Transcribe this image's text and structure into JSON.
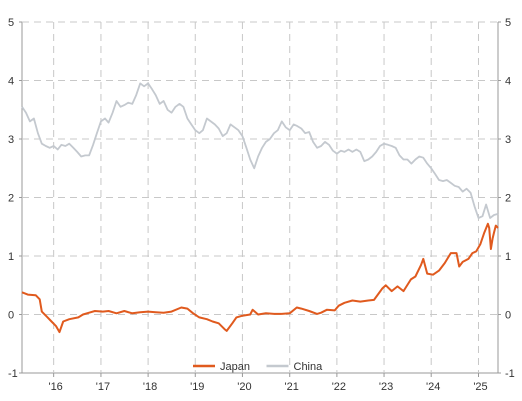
{
  "chart_data": {
    "type": "line",
    "x_axis": {
      "type": "date",
      "range": [
        "2015-05-01",
        "2025-06-01"
      ],
      "tick_dates": [
        "2016-01-01",
        "2017-01-01",
        "2018-01-01",
        "2019-01-01",
        "2020-01-01",
        "2021-01-01",
        "2022-01-01",
        "2023-01-01",
        "2024-01-01",
        "2025-01-01"
      ],
      "tick_labels": [
        "'16",
        "'17",
        "'18",
        "'19",
        "'20",
        "'21",
        "'22",
        "'23",
        "'24",
        "'25"
      ]
    },
    "y_axis": {
      "range": [
        -1,
        5
      ],
      "ticks": [
        -1,
        0,
        1,
        2,
        3,
        4,
        5
      ],
      "tick_labels": [
        "-1",
        "0",
        "1",
        "2",
        "3",
        "4",
        "5"
      ],
      "mirrored_right": true
    },
    "grid": true,
    "legend": {
      "position": "bottom-center"
    },
    "series": [
      {
        "name": "Japan",
        "color": "#e05a1e",
        "points": [
          [
            "2015-05-01",
            0.38
          ],
          [
            "2015-06-15",
            0.34
          ],
          [
            "2015-08-15",
            0.33
          ],
          [
            "2015-09-15",
            0.26
          ],
          [
            "2015-10-01",
            0.05
          ],
          [
            "2015-11-15",
            -0.05
          ],
          [
            "2015-12-15",
            -0.12
          ],
          [
            "2016-01-20",
            -0.2
          ],
          [
            "2016-02-15",
            -0.3
          ],
          [
            "2016-03-15",
            -0.12
          ],
          [
            "2016-05-01",
            -0.08
          ],
          [
            "2016-07-10",
            -0.05
          ],
          [
            "2016-08-15",
            0.0
          ],
          [
            "2016-10-01",
            0.03
          ],
          [
            "2016-11-15",
            0.06
          ],
          [
            "2017-01-15",
            0.05
          ],
          [
            "2017-03-01",
            0.06
          ],
          [
            "2017-05-01",
            0.02
          ],
          [
            "2017-07-01",
            0.06
          ],
          [
            "2017-09-01",
            0.02
          ],
          [
            "2017-11-01",
            0.04
          ],
          [
            "2018-01-01",
            0.05
          ],
          [
            "2018-03-01",
            0.04
          ],
          [
            "2018-05-01",
            0.03
          ],
          [
            "2018-07-01",
            0.05
          ],
          [
            "2018-09-15",
            0.12
          ],
          [
            "2018-11-01",
            0.1
          ],
          [
            "2018-12-15",
            0.02
          ],
          [
            "2019-02-01",
            -0.05
          ],
          [
            "2019-04-01",
            -0.08
          ],
          [
            "2019-05-15",
            -0.12
          ],
          [
            "2019-07-01",
            -0.15
          ],
          [
            "2019-08-15",
            -0.25
          ],
          [
            "2019-09-01",
            -0.28
          ],
          [
            "2019-10-15",
            -0.15
          ],
          [
            "2019-11-15",
            -0.05
          ],
          [
            "2020-01-01",
            -0.02
          ],
          [
            "2020-03-01",
            0.0
          ],
          [
            "2020-03-20",
            0.08
          ],
          [
            "2020-05-01",
            0.0
          ],
          [
            "2020-07-01",
            0.02
          ],
          [
            "2020-09-01",
            0.01
          ],
          [
            "2020-11-01",
            0.01
          ],
          [
            "2021-01-01",
            0.02
          ],
          [
            "2021-02-25",
            0.12
          ],
          [
            "2021-04-01",
            0.1
          ],
          [
            "2021-06-01",
            0.06
          ],
          [
            "2021-08-01",
            0.01
          ],
          [
            "2021-09-01",
            0.03
          ],
          [
            "2021-10-15",
            0.08
          ],
          [
            "2021-12-15",
            0.07
          ],
          [
            "2022-01-15",
            0.15
          ],
          [
            "2022-03-01",
            0.2
          ],
          [
            "2022-05-01",
            0.24
          ],
          [
            "2022-07-01",
            0.22
          ],
          [
            "2022-09-01",
            0.24
          ],
          [
            "2022-10-15",
            0.25
          ],
          [
            "2022-12-20",
            0.45
          ],
          [
            "2023-01-15",
            0.5
          ],
          [
            "2023-03-01",
            0.4
          ],
          [
            "2023-04-15",
            0.48
          ],
          [
            "2023-06-01",
            0.4
          ],
          [
            "2023-07-28",
            0.6
          ],
          [
            "2023-09-01",
            0.65
          ],
          [
            "2023-10-15",
            0.85
          ],
          [
            "2023-11-01",
            0.95
          ],
          [
            "2023-12-01",
            0.7
          ],
          [
            "2024-01-15",
            0.68
          ],
          [
            "2024-03-01",
            0.75
          ],
          [
            "2024-04-15",
            0.88
          ],
          [
            "2024-06-01",
            1.05
          ],
          [
            "2024-07-15",
            1.05
          ],
          [
            "2024-08-05",
            0.82
          ],
          [
            "2024-09-01",
            0.9
          ],
          [
            "2024-10-15",
            0.95
          ],
          [
            "2024-11-15",
            1.05
          ],
          [
            "2024-12-15",
            1.08
          ],
          [
            "2025-01-15",
            1.2
          ],
          [
            "2025-02-15",
            1.4
          ],
          [
            "2025-03-15",
            1.55
          ],
          [
            "2025-03-25",
            1.48
          ],
          [
            "2025-04-07",
            1.12
          ],
          [
            "2025-04-20",
            1.3
          ],
          [
            "2025-05-01",
            1.4
          ],
          [
            "2025-05-15",
            1.52
          ],
          [
            "2025-06-01",
            1.48
          ]
        ]
      },
      {
        "name": "China",
        "color": "#c4c9cf",
        "points": [
          [
            "2015-05-01",
            3.55
          ],
          [
            "2015-06-01",
            3.45
          ],
          [
            "2015-07-01",
            3.3
          ],
          [
            "2015-08-01",
            3.35
          ],
          [
            "2015-09-01",
            3.1
          ],
          [
            "2015-10-01",
            2.92
          ],
          [
            "2015-11-01",
            2.88
          ],
          [
            "2015-12-01",
            2.85
          ],
          [
            "2016-01-01",
            2.88
          ],
          [
            "2016-02-01",
            2.82
          ],
          [
            "2016-03-01",
            2.9
          ],
          [
            "2016-04-01",
            2.88
          ],
          [
            "2016-05-01",
            2.92
          ],
          [
            "2016-06-01",
            2.85
          ],
          [
            "2016-07-01",
            2.78
          ],
          [
            "2016-08-01",
            2.7
          ],
          [
            "2016-09-01",
            2.72
          ],
          [
            "2016-10-01",
            2.72
          ],
          [
            "2016-11-01",
            2.9
          ],
          [
            "2016-12-01",
            3.1
          ],
          [
            "2017-01-01",
            3.3
          ],
          [
            "2017-02-01",
            3.35
          ],
          [
            "2017-03-01",
            3.28
          ],
          [
            "2017-04-01",
            3.45
          ],
          [
            "2017-05-01",
            3.65
          ],
          [
            "2017-06-01",
            3.55
          ],
          [
            "2017-07-01",
            3.58
          ],
          [
            "2017-08-01",
            3.62
          ],
          [
            "2017-09-01",
            3.6
          ],
          [
            "2017-10-01",
            3.75
          ],
          [
            "2017-11-01",
            3.95
          ],
          [
            "2017-12-01",
            3.9
          ],
          [
            "2018-01-01",
            3.95
          ],
          [
            "2018-02-01",
            3.85
          ],
          [
            "2018-03-01",
            3.75
          ],
          [
            "2018-04-01",
            3.6
          ],
          [
            "2018-05-01",
            3.65
          ],
          [
            "2018-06-01",
            3.5
          ],
          [
            "2018-07-01",
            3.45
          ],
          [
            "2018-08-01",
            3.55
          ],
          [
            "2018-09-01",
            3.6
          ],
          [
            "2018-10-01",
            3.55
          ],
          [
            "2018-11-01",
            3.35
          ],
          [
            "2018-12-01",
            3.25
          ],
          [
            "2019-01-01",
            3.15
          ],
          [
            "2019-02-01",
            3.1
          ],
          [
            "2019-03-01",
            3.15
          ],
          [
            "2019-04-01",
            3.35
          ],
          [
            "2019-05-01",
            3.3
          ],
          [
            "2019-06-01",
            3.25
          ],
          [
            "2019-07-01",
            3.18
          ],
          [
            "2019-08-01",
            3.05
          ],
          [
            "2019-09-01",
            3.1
          ],
          [
            "2019-10-01",
            3.25
          ],
          [
            "2019-11-01",
            3.2
          ],
          [
            "2019-12-01",
            3.15
          ],
          [
            "2020-01-01",
            3.05
          ],
          [
            "2020-02-01",
            2.85
          ],
          [
            "2020-03-01",
            2.65
          ],
          [
            "2020-04-01",
            2.5
          ],
          [
            "2020-05-01",
            2.7
          ],
          [
            "2020-06-01",
            2.85
          ],
          [
            "2020-07-01",
            2.95
          ],
          [
            "2020-08-01",
            3.0
          ],
          [
            "2020-09-01",
            3.1
          ],
          [
            "2020-10-01",
            3.15
          ],
          [
            "2020-11-01",
            3.3
          ],
          [
            "2020-12-01",
            3.2
          ],
          [
            "2021-01-01",
            3.15
          ],
          [
            "2021-02-01",
            3.25
          ],
          [
            "2021-03-01",
            3.22
          ],
          [
            "2021-04-01",
            3.18
          ],
          [
            "2021-05-01",
            3.1
          ],
          [
            "2021-06-01",
            3.12
          ],
          [
            "2021-07-01",
            2.95
          ],
          [
            "2021-08-01",
            2.85
          ],
          [
            "2021-09-01",
            2.88
          ],
          [
            "2021-10-01",
            2.95
          ],
          [
            "2021-11-01",
            2.9
          ],
          [
            "2021-12-01",
            2.8
          ],
          [
            "2022-01-01",
            2.75
          ],
          [
            "2022-02-01",
            2.8
          ],
          [
            "2022-03-01",
            2.78
          ],
          [
            "2022-04-01",
            2.82
          ],
          [
            "2022-05-01",
            2.78
          ],
          [
            "2022-06-01",
            2.82
          ],
          [
            "2022-07-01",
            2.78
          ],
          [
            "2022-08-01",
            2.62
          ],
          [
            "2022-09-01",
            2.65
          ],
          [
            "2022-10-01",
            2.7
          ],
          [
            "2022-11-01",
            2.78
          ],
          [
            "2022-12-01",
            2.88
          ],
          [
            "2023-01-01",
            2.92
          ],
          [
            "2023-02-01",
            2.9
          ],
          [
            "2023-03-01",
            2.88
          ],
          [
            "2023-04-01",
            2.85
          ],
          [
            "2023-05-01",
            2.72
          ],
          [
            "2023-06-01",
            2.65
          ],
          [
            "2023-07-01",
            2.65
          ],
          [
            "2023-08-01",
            2.58
          ],
          [
            "2023-09-01",
            2.65
          ],
          [
            "2023-10-01",
            2.7
          ],
          [
            "2023-11-01",
            2.68
          ],
          [
            "2023-12-01",
            2.58
          ],
          [
            "2024-01-01",
            2.5
          ],
          [
            "2024-02-01",
            2.4
          ],
          [
            "2024-03-01",
            2.3
          ],
          [
            "2024-04-01",
            2.28
          ],
          [
            "2024-05-01",
            2.3
          ],
          [
            "2024-06-01",
            2.25
          ],
          [
            "2024-07-01",
            2.2
          ],
          [
            "2024-08-01",
            2.18
          ],
          [
            "2024-09-01",
            2.1
          ],
          [
            "2024-10-01",
            2.15
          ],
          [
            "2024-11-01",
            2.08
          ],
          [
            "2024-12-01",
            1.85
          ],
          [
            "2025-01-01",
            1.65
          ],
          [
            "2025-02-01",
            1.68
          ],
          [
            "2025-03-01",
            1.88
          ],
          [
            "2025-04-01",
            1.65
          ],
          [
            "2025-05-01",
            1.7
          ],
          [
            "2025-06-01",
            1.72
          ]
        ]
      }
    ]
  }
}
